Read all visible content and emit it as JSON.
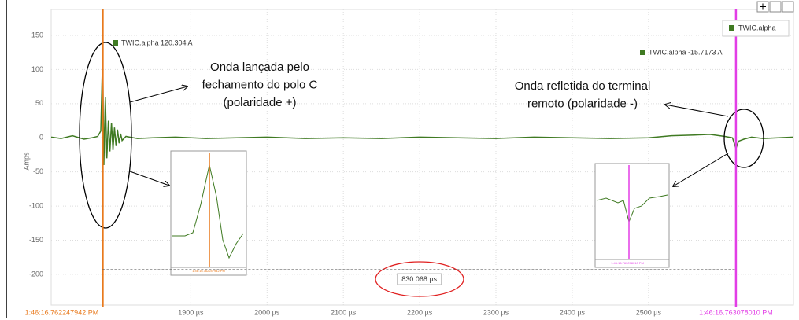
{
  "chart_data": {
    "type": "line",
    "ylabel": "Amps",
    "xlim": [
      1717,
      2690
    ],
    "ylim": [
      -245,
      188
    ],
    "yticks": [
      150,
      100,
      50,
      0,
      -50,
      -100,
      -150,
      -200
    ],
    "xticks": [
      {
        "value": 1900,
        "label": "1900 µs"
      },
      {
        "value": 2000,
        "label": "2000 µs"
      },
      {
        "value": 2100,
        "label": "2100 µs"
      },
      {
        "value": 2200,
        "label": "2200 µs"
      },
      {
        "value": 2300,
        "label": "2300 µs"
      },
      {
        "value": 2400,
        "label": "2400 µs"
      },
      {
        "value": 2500,
        "label": "2500 µs"
      }
    ],
    "grid": true,
    "cursors": [
      {
        "value": 1784.5,
        "label": "1:46:16.762247942 PM",
        "color": "#e8791c",
        "readout": "TWIC.alpha  120.304 A"
      },
      {
        "value": 2614.6,
        "label": "1:46:16.763078010 PM",
        "color": "#e23ee6",
        "readout": "TWIC.alpha  -15.7173 A"
      }
    ],
    "delta": "830.068 µs",
    "legend": "TWIC.alpha",
    "annotations": [
      [
        "Onda lançada pelo",
        "fechamento do polo C",
        "(polaridade +)"
      ],
      [
        "Onda refletida do terminal",
        "remoto (polaridade -)"
      ]
    ],
    "series": [
      {
        "name": "TWIC.alpha",
        "color": "#3f7a22",
        "x": [
          1717,
          1730,
          1745,
          1760,
          1770,
          1778,
          1782,
          1784.5,
          1786,
          1788,
          1790,
          1792,
          1794,
          1796,
          1798,
          1800,
          1802,
          1804,
          1806,
          1808,
          1810,
          1815,
          1820,
          1830,
          1850,
          1880,
          1920,
          1960,
          2000,
          2050,
          2100,
          2150,
          2200,
          2250,
          2300,
          2350,
          2400,
          2450,
          2500,
          2530,
          2560,
          2580,
          2600,
          2610,
          2614.6,
          2618,
          2625,
          2635,
          2650,
          2670,
          2690
        ],
        "values": [
          1,
          -1,
          3,
          -2,
          0,
          2,
          10,
          120.304,
          -40,
          60,
          -30,
          25,
          -20,
          22,
          -18,
          15,
          -12,
          12,
          -8,
          6,
          -4,
          2,
          1,
          -1,
          0,
          1,
          -1,
          0,
          1,
          -1,
          0,
          -1,
          1,
          0,
          -1,
          1,
          0,
          -1,
          0,
          3,
          4,
          5,
          2,
          0,
          -15.7173,
          -5,
          -2,
          1,
          -1,
          0,
          1
        ]
      }
    ]
  }
}
